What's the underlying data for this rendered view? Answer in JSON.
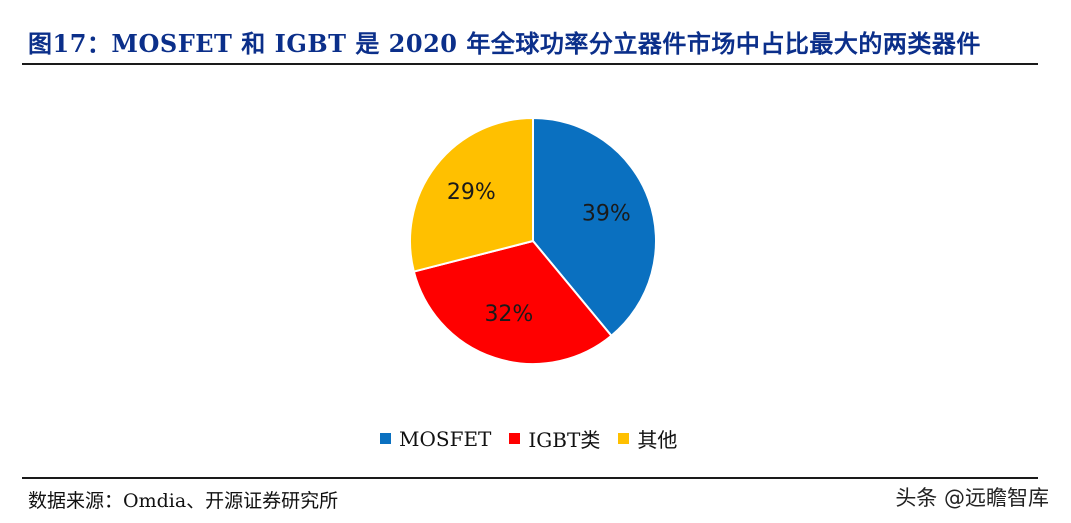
{
  "title": "图17：MOSFET 和 IGBT 是 2020 年全球功率分立器件市场中占比最大的两类器件",
  "chart_data": {
    "type": "pie",
    "slices": [
      {
        "label": "MOSFET",
        "value": 39,
        "display": "39%",
        "color": "#0a70c0"
      },
      {
        "label": "IGBT类",
        "value": 32,
        "display": "32%",
        "color": "#ff0000"
      },
      {
        "label": "其他",
        "value": 29,
        "display": "29%",
        "color": "#ffc000"
      }
    ],
    "start_angle_deg": 0,
    "direction": "clockwise",
    "legend_position": "bottom"
  },
  "source": "数据来源：Omdia、开源证券研究所",
  "watermark": "头条 @远瞻智库"
}
